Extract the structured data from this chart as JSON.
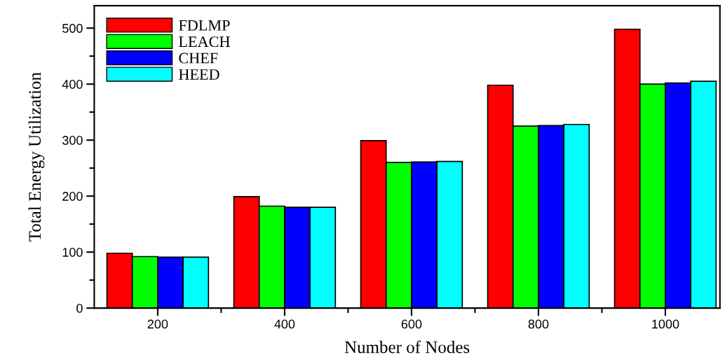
{
  "chart_data": {
    "type": "bar",
    "xlabel": "Number of Nodes",
    "ylabel": "Total Energy Utilization",
    "categories": [
      "200",
      "400",
      "600",
      "800",
      "1000"
    ],
    "series": [
      {
        "name": "FDLMP",
        "color": "#ff0000",
        "values": [
          98,
          199,
          299,
          398,
          498
        ]
      },
      {
        "name": "LEACH",
        "color": "#00ff00",
        "values": [
          92,
          182,
          260,
          325,
          400
        ]
      },
      {
        "name": "CHEF",
        "color": "#0000ff",
        "values": [
          91,
          180,
          261,
          326,
          402
        ]
      },
      {
        "name": "HEED",
        "color": "#00ffff",
        "values": [
          91,
          180,
          262,
          328,
          405
        ]
      }
    ],
    "ylim": [
      0,
      540
    ],
    "yticks": [
      0,
      100,
      200,
      300,
      400,
      500
    ],
    "grid": false,
    "legend": "top left"
  }
}
